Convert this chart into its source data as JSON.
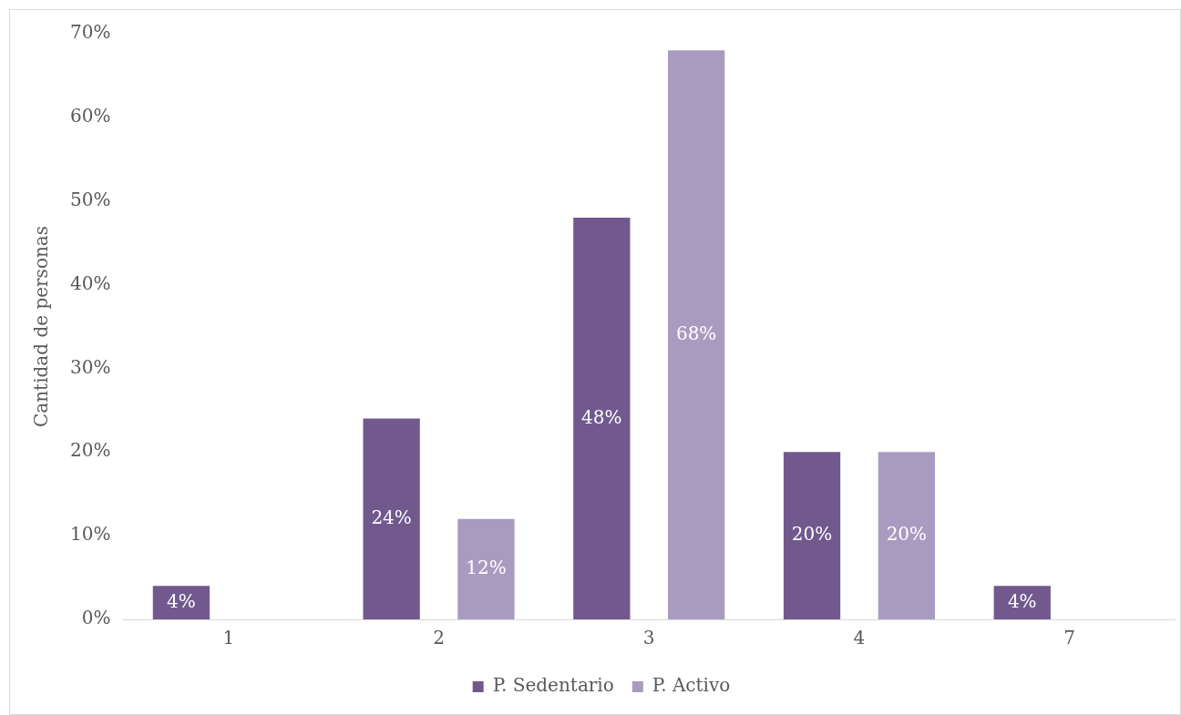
{
  "chart_data": {
    "type": "bar",
    "ylabel": "Cantidad de personas",
    "categories": [
      "1",
      "2",
      "3",
      "4",
      "7"
    ],
    "series": [
      {
        "name": "P. Sedentario",
        "color": "#71598e",
        "values": [
          4,
          24,
          48,
          20,
          4
        ],
        "value_labels": [
          "4%",
          "24%",
          "48%",
          "20%",
          "4%"
        ]
      },
      {
        "name": "P. Activo",
        "color": "#a99bc0",
        "values": [
          null,
          12,
          68,
          20,
          null
        ],
        "value_labels": [
          null,
          "12%",
          "68%",
          "20%",
          null
        ]
      }
    ],
    "ylim": [
      0,
      70
    ],
    "yticks": [
      {
        "value": 0,
        "label": "0%"
      },
      {
        "value": 10,
        "label": "10%"
      },
      {
        "value": 20,
        "label": "20%"
      },
      {
        "value": 30,
        "label": "30%"
      },
      {
        "value": 40,
        "label": "40%"
      },
      {
        "value": 50,
        "label": "50%"
      },
      {
        "value": 60,
        "label": "60%"
      },
      {
        "value": 70,
        "label": "70%"
      }
    ],
    "grid": false,
    "legend": "bottom"
  }
}
